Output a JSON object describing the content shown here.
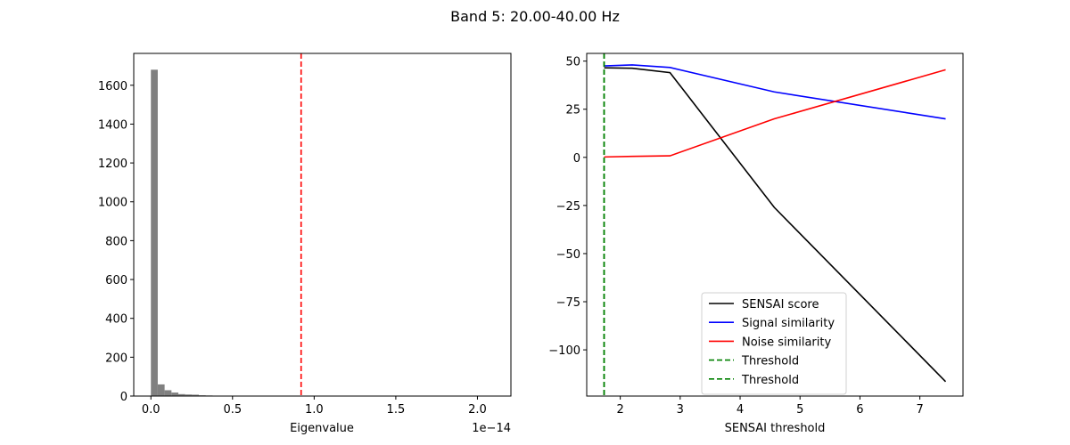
{
  "figure": {
    "title": "Band 5: 20.00-40.00 Hz"
  },
  "chart_data": [
    {
      "type": "bar",
      "subtype": "histogram",
      "xlabel": "Eigenvalue",
      "ylabel": "",
      "x_offset_text": "1e−14",
      "xlim": [
        -0.105,
        2.205
      ],
      "ylim": [
        0,
        1764
      ],
      "xticks": [
        0.0,
        0.5,
        1.0,
        1.5,
        2.0
      ],
      "xtick_labels": [
        "0.0",
        "0.5",
        "1.0",
        "1.5",
        "2.0"
      ],
      "yticks": [
        0,
        200,
        400,
        600,
        800,
        1000,
        1200,
        1400,
        1600
      ],
      "ytick_labels": [
        "0",
        "200",
        "400",
        "600",
        "800",
        "1000",
        "1200",
        "1400",
        "1600"
      ],
      "bin_width": 0.042,
      "bin_starts": [
        0.0,
        0.042,
        0.084,
        0.126,
        0.168,
        0.21,
        0.252,
        0.294,
        0.336,
        0.378,
        0.42,
        0.462,
        0.504
      ],
      "values": [
        1680,
        60,
        30,
        18,
        10,
        8,
        7,
        4,
        3,
        2,
        2,
        2,
        1
      ],
      "bar_color": "#808080",
      "vlines": [
        {
          "x": 0.92,
          "color": "#ff0000",
          "style": "dashed"
        }
      ],
      "grid": false
    },
    {
      "type": "line",
      "xlabel": "SENSAI threshold",
      "ylabel": "",
      "xlim": [
        1.44,
        7.72
      ],
      "ylim": [
        -124.0,
        54.0
      ],
      "xticks": [
        2,
        3,
        4,
        5,
        6,
        7
      ],
      "xtick_labels": [
        "2",
        "3",
        "4",
        "5",
        "6",
        "7"
      ],
      "yticks": [
        50,
        25,
        0,
        -25,
        -50,
        -75,
        -100
      ],
      "ytick_labels": [
        "50",
        "25",
        "0",
        "−25",
        "−50",
        "−75",
        "−100"
      ],
      "x": [
        1.73,
        2.2,
        2.83,
        4.57,
        7.43
      ],
      "series": [
        {
          "name": "SENSAI score",
          "color": "#000000",
          "values": [
            46.5,
            46.3,
            44.0,
            -26.0,
            -116.5
          ]
        },
        {
          "name": "Signal similarity",
          "color": "#0000ff",
          "values": [
            47.5,
            48.0,
            46.7,
            34.0,
            20.0
          ]
        },
        {
          "name": "Noise similarity",
          "color": "#ff0000",
          "values": [
            0.2,
            0.5,
            0.8,
            20.0,
            45.5
          ]
        }
      ],
      "vlines": [
        {
          "name": "Threshold",
          "x": 1.73,
          "color": "#008000",
          "style": "dashed"
        },
        {
          "name": "Threshold",
          "x": 1.73,
          "color": "#008000",
          "style": "dashed"
        }
      ],
      "legend_location": "lower center",
      "grid": false
    }
  ]
}
